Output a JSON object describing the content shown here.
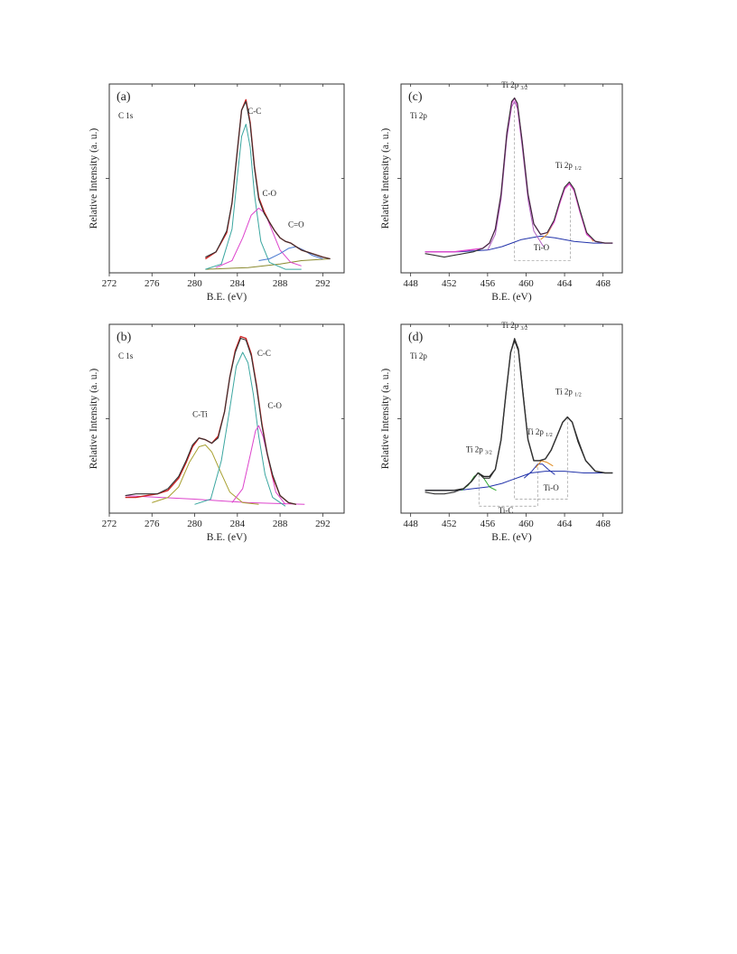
{
  "chart_data": [
    {
      "panel": "(a)",
      "type": "line",
      "element_label": "C 1s",
      "xlabel": "B.E. (eV)",
      "ylabel": "Relative Intensity (a. u.)",
      "xlim": [
        272,
        294
      ],
      "ylim": [
        0,
        1.08
      ],
      "xticks": [
        272,
        276,
        280,
        284,
        288,
        292
      ],
      "reversed_x": false,
      "series": [
        {
          "kind": "measured",
          "color": "#333333",
          "x": [
            281.0,
            282.0,
            283.0,
            283.5,
            284.0,
            284.4,
            284.8,
            285.2,
            285.6,
            286.0,
            286.5,
            287.0,
            287.5,
            288.0,
            288.5,
            289.0,
            289.5,
            290.0,
            291.0,
            292.0,
            292.7
          ],
          "y": [
            0.09,
            0.12,
            0.24,
            0.4,
            0.7,
            0.93,
            0.98,
            0.85,
            0.6,
            0.42,
            0.34,
            0.29,
            0.24,
            0.2,
            0.18,
            0.17,
            0.15,
            0.13,
            0.11,
            0.09,
            0.08
          ]
        },
        {
          "kind": "envelope",
          "color": "#cc2222",
          "x": [
            281.0,
            282.0,
            283.0,
            283.5,
            284.0,
            284.4,
            284.8,
            285.2,
            285.6,
            286.0,
            286.5,
            287.0,
            287.5,
            288.0,
            288.5,
            289.0,
            289.5,
            290.0,
            291.0,
            292.0,
            292.7
          ],
          "y": [
            0.08,
            0.12,
            0.23,
            0.4,
            0.7,
            0.93,
            0.99,
            0.86,
            0.61,
            0.43,
            0.35,
            0.29,
            0.24,
            0.2,
            0.18,
            0.17,
            0.15,
            0.13,
            0.11,
            0.09,
            0.08
          ]
        },
        {
          "kind": "component",
          "name": "C-C",
          "color": "#3aa6a0",
          "x": [
            281.0,
            282.5,
            283.5,
            284.0,
            284.4,
            284.8,
            285.2,
            285.6,
            286.2,
            287.0,
            288.5,
            290.0
          ],
          "y": [
            0.02,
            0.05,
            0.25,
            0.55,
            0.78,
            0.85,
            0.72,
            0.45,
            0.18,
            0.06,
            0.02,
            0.02
          ]
        },
        {
          "kind": "component",
          "name": "C-O",
          "color": "#dd44cc",
          "x": [
            282.0,
            283.5,
            284.5,
            285.3,
            286.0,
            286.6,
            287.2,
            288.0,
            289.0,
            290.0
          ],
          "y": [
            0.03,
            0.07,
            0.2,
            0.33,
            0.37,
            0.34,
            0.25,
            0.13,
            0.06,
            0.04
          ]
        },
        {
          "kind": "component",
          "name": "C=O",
          "color": "#4a7ad0",
          "x": [
            286.0,
            287.0,
            288.0,
            288.8,
            289.5,
            290.2,
            291.0,
            292.0
          ],
          "y": [
            0.07,
            0.08,
            0.11,
            0.14,
            0.15,
            0.13,
            0.1,
            0.08
          ]
        },
        {
          "kind": "background",
          "color": "#8a8a30",
          "x": [
            281.0,
            285.0,
            288.0,
            290.0,
            292.7
          ],
          "y": [
            0.02,
            0.03,
            0.05,
            0.07,
            0.08
          ]
        }
      ],
      "annotations": [
        {
          "text": "C-C",
          "x": 285.6,
          "y": 0.91
        },
        {
          "text": "C-O",
          "x": 287.0,
          "y": 0.44
        },
        {
          "text": "C=O",
          "x": 289.5,
          "y": 0.26
        }
      ]
    },
    {
      "panel": "(b)",
      "type": "line",
      "element_label": "C 1s",
      "xlabel": "B.E. (eV)",
      "ylabel": "Relative Intensity (a. u.)",
      "xlim": [
        272,
        294
      ],
      "ylim": [
        0,
        1.08
      ],
      "xticks": [
        272,
        276,
        280,
        284,
        288,
        292
      ],
      "reversed_x": false,
      "series": [
        {
          "kind": "measured",
          "color": "#333333",
          "x": [
            273.5,
            274.5,
            275.5,
            276.5,
            277.5,
            278.5,
            279.2,
            279.8,
            280.4,
            281.0,
            281.6,
            282.2,
            282.8,
            283.3,
            283.8,
            284.3,
            284.8,
            285.3,
            285.8,
            286.3,
            286.8,
            287.3,
            288.0,
            288.8,
            289.5
          ],
          "y": [
            0.1,
            0.11,
            0.11,
            0.11,
            0.14,
            0.21,
            0.3,
            0.39,
            0.43,
            0.42,
            0.4,
            0.43,
            0.58,
            0.78,
            0.92,
            1.0,
            0.99,
            0.9,
            0.72,
            0.5,
            0.34,
            0.22,
            0.1,
            0.06,
            0.05
          ]
        },
        {
          "kind": "envelope",
          "color": "#cc2222",
          "x": [
            273.5,
            274.5,
            275.5,
            276.5,
            277.5,
            278.5,
            279.2,
            279.8,
            280.4,
            281.0,
            281.6,
            282.2,
            282.8,
            283.3,
            283.8,
            284.3,
            284.8,
            285.3,
            285.8,
            286.3,
            286.8,
            287.3,
            288.0,
            288.8,
            289.5
          ],
          "y": [
            0.09,
            0.09,
            0.1,
            0.11,
            0.13,
            0.2,
            0.29,
            0.38,
            0.43,
            0.42,
            0.4,
            0.44,
            0.58,
            0.78,
            0.93,
            1.01,
            1.0,
            0.91,
            0.73,
            0.51,
            0.34,
            0.21,
            0.1,
            0.06,
            0.05
          ]
        },
        {
          "kind": "component",
          "name": "C-Ti",
          "color": "#a8a030",
          "x": [
            276.0,
            277.5,
            278.5,
            279.5,
            280.4,
            281.0,
            281.6,
            282.4,
            283.3,
            284.5,
            286.0
          ],
          "y": [
            0.06,
            0.09,
            0.15,
            0.29,
            0.38,
            0.39,
            0.35,
            0.24,
            0.12,
            0.06,
            0.05
          ]
        },
        {
          "kind": "component",
          "name": "C-C",
          "color": "#3aa6a0",
          "x": [
            280.0,
            281.5,
            282.5,
            283.3,
            283.9,
            284.5,
            285.0,
            285.5,
            286.0,
            286.6,
            287.3,
            288.5
          ],
          "y": [
            0.05,
            0.08,
            0.3,
            0.6,
            0.84,
            0.92,
            0.86,
            0.68,
            0.44,
            0.22,
            0.09,
            0.04
          ]
        },
        {
          "kind": "component",
          "name": "C-O",
          "color": "#dd44cc",
          "x": [
            283.5,
            284.5,
            285.2,
            285.7,
            286.0,
            286.4,
            287.0,
            287.6,
            288.5
          ],
          "y": [
            0.06,
            0.14,
            0.33,
            0.47,
            0.5,
            0.44,
            0.28,
            0.12,
            0.05
          ]
        },
        {
          "kind": "background",
          "color": "#dd44cc",
          "x": [
            273.5,
            280.0,
            285.0,
            290.3
          ],
          "y": [
            0.1,
            0.08,
            0.06,
            0.05
          ]
        }
      ],
      "annotations": [
        {
          "text": "C-Ti",
          "x": 280.5,
          "y": 0.55
        },
        {
          "text": "C-C",
          "x": 286.5,
          "y": 0.9
        },
        {
          "text": "C-O",
          "x": 287.5,
          "y": 0.6
        }
      ]
    },
    {
      "panel": "(c)",
      "type": "line",
      "element_label": "Ti 2p",
      "xlabel": "B.E. (eV)",
      "ylabel": "Relative Intensity (a. u.)",
      "xlim": [
        447,
        470
      ],
      "ylim": [
        0,
        1.08
      ],
      "xticks": [
        448,
        452,
        456,
        460,
        464,
        468
      ],
      "reversed_x": false,
      "series": [
        {
          "kind": "measured",
          "color": "#333333",
          "x": [
            449.5,
            450.5,
            451.5,
            452.5,
            453.5,
            454.5,
            455.5,
            456.2,
            456.8,
            457.4,
            458.0,
            458.5,
            458.8,
            459.1,
            459.6,
            460.2,
            460.8,
            461.5,
            462.2,
            462.9,
            463.5,
            464.0,
            464.5,
            465.0,
            465.6,
            466.3,
            467.2,
            468.2,
            469.0
          ],
          "y": [
            0.11,
            0.1,
            0.09,
            0.1,
            0.11,
            0.12,
            0.14,
            0.17,
            0.25,
            0.45,
            0.8,
            0.98,
            1.0,
            0.97,
            0.75,
            0.45,
            0.28,
            0.22,
            0.23,
            0.3,
            0.41,
            0.49,
            0.52,
            0.48,
            0.36,
            0.23,
            0.18,
            0.17,
            0.17
          ]
        },
        {
          "kind": "envelope",
          "color": "#dd44cc",
          "x": [
            449.5,
            452.5,
            455.5,
            456.2,
            456.8,
            457.4,
            458.0,
            458.5,
            458.8,
            459.1,
            459.6,
            460.2,
            460.8,
            461.5,
            462.2,
            462.9,
            463.5,
            464.0,
            464.5,
            465.0,
            465.6,
            466.3,
            467.2,
            468.2,
            469.0
          ],
          "y": [
            0.12,
            0.12,
            0.14,
            0.17,
            0.25,
            0.45,
            0.8,
            0.97,
            1.0,
            0.96,
            0.75,
            0.45,
            0.28,
            0.22,
            0.23,
            0.29,
            0.4,
            0.48,
            0.51,
            0.47,
            0.35,
            0.22,
            0.18,
            0.17,
            0.17
          ]
        },
        {
          "kind": "component",
          "name": "Ti 2p 3/2",
          "color": "#b060c0",
          "x": [
            456.0,
            456.8,
            457.4,
            458.0,
            458.5,
            458.8,
            459.1,
            459.6,
            460.2,
            460.8,
            461.8
          ],
          "y": [
            0.13,
            0.22,
            0.42,
            0.77,
            0.95,
            0.98,
            0.94,
            0.72,
            0.42,
            0.24,
            0.15
          ]
        },
        {
          "kind": "component",
          "name": "Ti 2p 1/2",
          "color": "#e08a20",
          "x": [
            461.5,
            462.2,
            462.9,
            463.5,
            464.0,
            464.5,
            465.0,
            465.6,
            466.3,
            467.0
          ],
          "y": [
            0.19,
            0.22,
            0.29,
            0.4,
            0.48,
            0.51,
            0.47,
            0.35,
            0.23,
            0.18
          ]
        },
        {
          "kind": "background",
          "color": "#2233aa",
          "x": [
            449.5,
            453.0,
            456.0,
            457.5,
            458.5,
            459.5,
            460.5,
            461.5,
            463.0,
            465.0,
            467.0,
            469.0
          ],
          "y": [
            0.12,
            0.12,
            0.13,
            0.15,
            0.17,
            0.19,
            0.2,
            0.21,
            0.2,
            0.18,
            0.17,
            0.17
          ]
        }
      ],
      "annotations": [
        {
          "text": "Ti 2p",
          "sub": "3/2",
          "x": 458.8,
          "y": 1.06
        },
        {
          "text": "Ti 2p",
          "sub": "1/2",
          "x": 464.4,
          "y": 0.6
        },
        {
          "text": "Ti-O",
          "x": 461.6,
          "y": 0.13
        }
      ],
      "guides": [
        {
          "type": "bracket",
          "x1": 458.8,
          "x2": 464.6,
          "y_low": 0.07,
          "y_top1": 0.98,
          "y_top2": 0.52
        }
      ]
    },
    {
      "panel": "(d)",
      "type": "line",
      "element_label": "Ti 2p",
      "xlabel": "B.E. (eV)",
      "ylabel": "Relative Intensity (a. u.)",
      "xlim": [
        447,
        470
      ],
      "ylim": [
        0,
        1.08
      ],
      "xticks": [
        448,
        452,
        456,
        460,
        464,
        468
      ],
      "reversed_x": false,
      "series": [
        {
          "kind": "measured",
          "color": "#333333",
          "x": [
            449.5,
            450.5,
            451.5,
            452.5,
            453.5,
            454.3,
            455.0,
            455.6,
            456.2,
            456.8,
            457.4,
            457.9,
            458.4,
            458.8,
            459.2,
            459.7,
            460.2,
            460.8,
            461.4,
            462.0,
            462.6,
            463.2,
            463.8,
            464.3,
            464.8,
            465.4,
            466.2,
            467.2,
            468.2,
            469.0
          ],
          "y": [
            0.12,
            0.11,
            0.11,
            0.12,
            0.14,
            0.18,
            0.23,
            0.2,
            0.2,
            0.25,
            0.42,
            0.68,
            0.92,
            1.0,
            0.94,
            0.68,
            0.42,
            0.3,
            0.3,
            0.31,
            0.36,
            0.44,
            0.52,
            0.55,
            0.52,
            0.42,
            0.3,
            0.24,
            0.23,
            0.23
          ]
        },
        {
          "kind": "envelope",
          "color": "#222222",
          "x": [
            449.5,
            452.5,
            453.5,
            454.3,
            455.0,
            455.6,
            456.2,
            456.8,
            457.4,
            457.9,
            458.4,
            458.8,
            459.2,
            459.7,
            460.2,
            460.8,
            461.4,
            462.0,
            462.6,
            463.2,
            463.8,
            464.3,
            464.8,
            465.4,
            466.2,
            467.2,
            468.2,
            469.0
          ],
          "y": [
            0.13,
            0.13,
            0.14,
            0.18,
            0.23,
            0.21,
            0.21,
            0.25,
            0.42,
            0.68,
            0.92,
            0.99,
            0.93,
            0.67,
            0.42,
            0.3,
            0.3,
            0.31,
            0.36,
            0.44,
            0.52,
            0.55,
            0.52,
            0.41,
            0.3,
            0.24,
            0.23,
            0.23
          ]
        },
        {
          "kind": "component",
          "name": "Ti 2p 3/2 (Ti-C)",
          "color": "#33aa33",
          "x": [
            453.3,
            454.0,
            454.6,
            455.1,
            455.6,
            456.2,
            456.9
          ],
          "y": [
            0.13,
            0.16,
            0.21,
            0.23,
            0.2,
            0.15,
            0.13
          ]
        },
        {
          "kind": "component",
          "name": "Ti 2p 1/2 (Ti-C)",
          "color": "#2233aa",
          "x": [
            459.8,
            460.6,
            461.2,
            461.7,
            462.3,
            463.0
          ],
          "y": [
            0.2,
            0.24,
            0.28,
            0.28,
            0.25,
            0.22
          ]
        },
        {
          "kind": "component",
          "name": "Ti 2p 1/2 (Ti-O)",
          "color": "#e08a20",
          "x": [
            461.0,
            461.6,
            462.2,
            462.8
          ],
          "y": [
            0.26,
            0.3,
            0.29,
            0.27
          ]
        },
        {
          "kind": "background",
          "color": "#2233aa",
          "x": [
            449.5,
            453.0,
            456.0,
            457.5,
            458.5,
            459.5,
            460.5,
            462.0,
            464.0,
            466.0,
            468.0,
            469.0
          ],
          "y": [
            0.13,
            0.13,
            0.15,
            0.17,
            0.19,
            0.21,
            0.23,
            0.24,
            0.24,
            0.23,
            0.23,
            0.23
          ]
        }
      ],
      "annotations": [
        {
          "text": "Ti 2p",
          "sub": "3/2",
          "x": 458.8,
          "y": 1.06
        },
        {
          "text": "Ti 2p",
          "sub": "1/2",
          "x": 464.4,
          "y": 0.68
        },
        {
          "text": "Ti 2p",
          "sub": "3/2",
          "x": 455.1,
          "y": 0.35
        },
        {
          "text": "Ti 2p",
          "sub": "1/2",
          "x": 461.4,
          "y": 0.45
        },
        {
          "text": "Ti-O",
          "x": 462.6,
          "y": 0.13
        },
        {
          "text": "Ti-C",
          "x": 457.9,
          "y": 0.0
        }
      ],
      "guides": [
        {
          "type": "bracket",
          "x1": 458.8,
          "x2": 464.3,
          "y_low": 0.08,
          "y_top1": 0.98,
          "y_top2": 0.55
        },
        {
          "type": "bracket",
          "x1": 455.1,
          "x2": 461.2,
          "y_low": 0.04,
          "y_top1": 0.22,
          "y_top2": 0.28
        }
      ]
    }
  ]
}
